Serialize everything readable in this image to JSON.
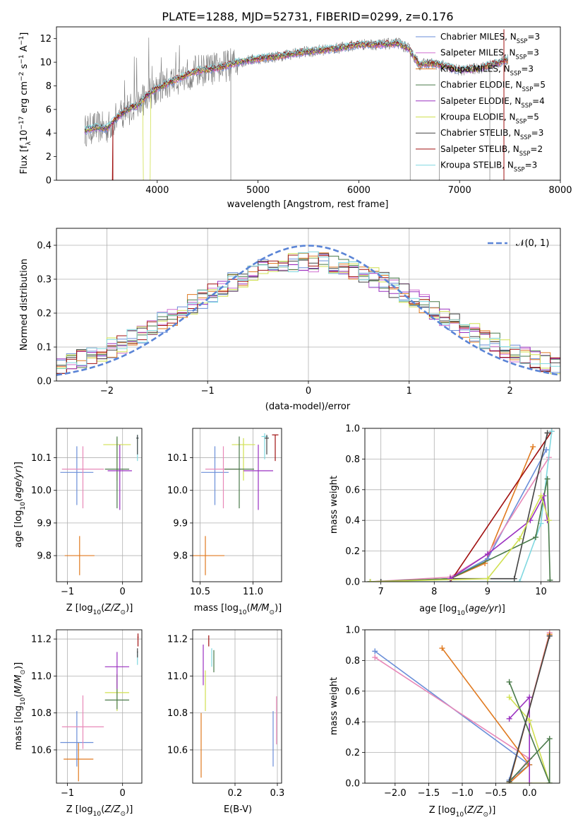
{
  "figure_title": "PLATE=1288, MJD=52731, FIBERID=0299, z=0.176",
  "colors": {
    "Chabrier MILES": "#6a8ed8",
    "Salpeter MILES": "#d070d0",
    "Kroupa MILES": "#e07a20",
    "Chabrier ELODIE": "#4a7a4a",
    "Salpeter ELODIE": "#9a30c0",
    "Kroupa ELODIE": "#d0e050",
    "Chabrier STELIB": "#444444",
    "Salpeter STELIB": "#a01010",
    "Kroupa STELIB": "#80d8e0",
    "pink": "#e888b8",
    "data": "#7a7a7a"
  },
  "chart_data": [
    {
      "id": "spectrum",
      "type": "line",
      "xlabel": "wavelength [Angstrom, rest frame]",
      "ylabel": "Flux [f_λ10^-17 erg cm^-2 s^-1 A^-1]",
      "xlim": [
        3000,
        8000
      ],
      "ylim": [
        0,
        13
      ],
      "xticks": [
        4000,
        5000,
        6000,
        7000,
        8000
      ],
      "yticks": [
        0,
        2,
        4,
        6,
        8,
        10,
        12
      ],
      "grid": false,
      "legend_position": "right",
      "legend": [
        {
          "model": "Chabrier MILES",
          "nssp": "3"
        },
        {
          "model": "Salpeter MILES",
          "nssp": "3"
        },
        {
          "model": "Kroupa MILES",
          "nssp": "3"
        },
        {
          "model": "Chabrier ELODIE",
          "nssp": "5"
        },
        {
          "model": "Salpeter ELODIE",
          "nssp": "4"
        },
        {
          "model": "Kroupa ELODIE",
          "nssp": "5"
        },
        {
          "model": "Chabrier STELIB",
          "nssp": "3"
        },
        {
          "model": "Salpeter STELIB",
          "nssp": "2"
        },
        {
          "model": "Kroupa STELIB",
          "nssp": "3"
        }
      ],
      "continuum": {
        "x": [
          3270,
          3400,
          3500,
          3600,
          3700,
          3800,
          3900,
          4000,
          4200,
          4400,
          4600,
          4800,
          5000,
          5200,
          5400,
          5600,
          5800,
          6000,
          6200,
          6400,
          6500,
          6600,
          6700,
          6800,
          7000,
          7200,
          7400,
          7500
        ],
        "y": [
          4.2,
          4.5,
          4.4,
          5.3,
          6.0,
          6.3,
          7.2,
          7.8,
          8.6,
          9.3,
          9.5,
          10.0,
          10.3,
          10.5,
          10.8,
          11.0,
          11.2,
          11.5,
          11.5,
          11.6,
          11.1,
          9.8,
          9.9,
          9.8,
          9.3,
          9.5,
          10.0,
          10.3
        ]
      }
    },
    {
      "id": "residuals",
      "type": "histogram",
      "xlabel": "(data-model)/error",
      "ylabel": "Normed distribution",
      "xlim": [
        -2.5,
        2.5
      ],
      "ylim": [
        0,
        0.45
      ],
      "xticks": [
        -2,
        -1,
        0,
        1,
        2
      ],
      "yticks": [
        0.0,
        0.1,
        0.2,
        0.3,
        0.4
      ],
      "grid": true,
      "legend_position": "top-right",
      "legend_label": "𝒩(0, 1)",
      "reference_curve": "normal(0,1)"
    },
    {
      "id": "age_vs_Z",
      "type": "errorbar",
      "xlabel": "Z [log10(Z/Z⊙)]",
      "ylabel": "age  [log10(age/yr)]",
      "xlim": [
        -1.2,
        0.35
      ],
      "ylim": [
        9.72,
        10.19
      ],
      "xticks": [
        -1,
        0
      ],
      "yticks": [
        9.8,
        9.9,
        10.0,
        10.1
      ],
      "grid": true,
      "points": [
        {
          "model": "Kroupa MILES",
          "x": -0.78,
          "xerr": 0.27,
          "y": 9.8,
          "yerr_lo": 0.06,
          "yerr_hi": 0.06
        },
        {
          "model": "Chabrier MILES",
          "x": -0.83,
          "xerr": 0.3,
          "y": 10.055,
          "yerr_lo": 0.1,
          "yerr_hi": 0.08
        },
        {
          "model": "pink",
          "x": -0.72,
          "xerr": 0.38,
          "y": 10.065,
          "yerr_lo": 0.12,
          "yerr_hi": 0.07
        },
        {
          "model": "Kroupa ELODIE",
          "x": -0.1,
          "xerr": 0.25,
          "y": 10.14,
          "yerr_lo": 0.11,
          "yerr_hi": 0.02
        },
        {
          "model": "Chabrier ELODIE",
          "x": -0.1,
          "xerr": 0.22,
          "y": 10.065,
          "yerr_lo": 0.12,
          "yerr_hi": 0.1
        },
        {
          "model": "Salpeter ELODIE",
          "x": -0.05,
          "xerr": 0.22,
          "y": 10.06,
          "yerr_lo": 0.12,
          "yerr_hi": 0.08
        },
        {
          "model": "Kroupa STELIB",
          "x": 0.27,
          "xerr": 0.02,
          "y": 10.16,
          "yerr_lo": 0.07,
          "yerr_hi": 0.01
        },
        {
          "model": "Chabrier STELIB",
          "x": 0.27,
          "xerr": 0.02,
          "y": 10.16,
          "yerr_lo": 0.05,
          "yerr_hi": 0.01
        }
      ]
    },
    {
      "id": "age_vs_mass",
      "type": "errorbar",
      "xlabel": "mass [log10(M/M⊙)]",
      "ylabel": "",
      "xlim": [
        10.43,
        11.27
      ],
      "ylim": [
        9.72,
        10.19
      ],
      "xticks": [
        10.5,
        11.0
      ],
      "yticks": [
        9.8,
        9.9,
        10.0,
        10.1
      ],
      "grid": true,
      "points": [
        {
          "model": "Kroupa MILES",
          "x": 10.55,
          "xerr": 0.18,
          "y": 9.8,
          "yerr_lo": 0.06,
          "yerr_hi": 0.06
        },
        {
          "model": "Chabrier MILES",
          "x": 10.64,
          "xerr": 0.13,
          "y": 10.055,
          "yerr_lo": 0.1,
          "yerr_hi": 0.08
        },
        {
          "model": "pink",
          "x": 10.72,
          "xerr": 0.17,
          "y": 10.065,
          "yerr_lo": 0.12,
          "yerr_hi": 0.07
        },
        {
          "model": "Kroupa ELODIE",
          "x": 10.91,
          "xerr": 0.11,
          "y": 10.14,
          "yerr_lo": 0.11,
          "yerr_hi": 0.02
        },
        {
          "model": "Chabrier ELODIE",
          "x": 10.87,
          "xerr": 0.14,
          "y": 10.065,
          "yerr_lo": 0.12,
          "yerr_hi": 0.1
        },
        {
          "model": "Salpeter ELODIE",
          "x": 11.05,
          "xerr": 0.14,
          "y": 10.06,
          "yerr_lo": 0.12,
          "yerr_hi": 0.08
        },
        {
          "model": "Kroupa STELIB",
          "x": 11.11,
          "xerr": 0.03,
          "y": 10.165,
          "yerr_lo": 0.07,
          "yerr_hi": 0.01
        },
        {
          "model": "Chabrier STELIB",
          "x": 11.13,
          "xerr": 0.02,
          "y": 10.16,
          "yerr_lo": 0.05,
          "yerr_hi": 0.01
        },
        {
          "model": "Salpeter STELIB",
          "x": 11.21,
          "xerr": 0.03,
          "y": 10.17,
          "yerr_lo": 0.08,
          "yerr_hi": 0.0
        }
      ]
    },
    {
      "id": "weight_vs_age",
      "type": "line",
      "xlabel": "age  [log10(age/yr)]",
      "ylabel": "mass weight",
      "xlim": [
        6.7,
        10.35
      ],
      "ylim": [
        0,
        1
      ],
      "xticks": [
        7,
        8,
        9,
        10
      ],
      "yticks": [
        0.0,
        0.2,
        0.4,
        0.6,
        0.8,
        1.0
      ],
      "grid": true,
      "series": [
        {
          "model": "Kroupa MILES",
          "x": [
            7.0,
            8.3,
            8.95,
            9.85
          ],
          "y": [
            0.0,
            0.02,
            0.12,
            0.88
          ]
        },
        {
          "model": "Chabrier MILES",
          "x": [
            7.0,
            8.3,
            9.0,
            10.1
          ],
          "y": [
            0.0,
            0.02,
            0.15,
            0.86
          ]
        },
        {
          "model": "pink",
          "x": [
            6.8,
            8.3,
            9.0,
            10.15
          ],
          "y": [
            0.0,
            0.03,
            0.18,
            0.81
          ]
        },
        {
          "model": "Salpeter STELIB",
          "x": [
            8.3,
            10.2
          ],
          "y": [
            0.0,
            0.98
          ]
        },
        {
          "model": "Chabrier STELIB",
          "x": [
            7.0,
            8.3,
            9.5,
            10.12
          ],
          "y": [
            0.0,
            0.02,
            0.02,
            0.97
          ]
        },
        {
          "model": "Kroupa STELIB",
          "x": [
            6.8,
            9.6,
            10.0,
            10.2
          ],
          "y": [
            0.0,
            0.0,
            0.38,
            0.98
          ]
        },
        {
          "model": "Chabrier ELODIE",
          "x": [
            6.8,
            8.3,
            9.9,
            10.12,
            10.17
          ],
          "y": [
            0.0,
            0.02,
            0.29,
            0.67,
            0.01
          ]
        },
        {
          "model": "Salpeter ELODIE",
          "x": [
            8.3,
            9.0,
            9.8,
            10.05,
            10.12
          ],
          "y": [
            0.02,
            0.18,
            0.4,
            0.56,
            0.4
          ]
        },
        {
          "model": "Kroupa ELODIE",
          "x": [
            6.8,
            9.0,
            9.6,
            10.0,
            10.15
          ],
          "y": [
            0.0,
            0.02,
            0.28,
            0.56,
            0.4
          ]
        }
      ]
    },
    {
      "id": "mass_vs_Z",
      "type": "errorbar",
      "xlabel": "Z [log10(Z/Z⊙)]",
      "ylabel": "mass [log10(M/M⊙)]",
      "xlim": [
        -1.2,
        0.35
      ],
      "ylim": [
        10.42,
        11.25
      ],
      "xticks": [
        -1,
        0
      ],
      "yticks": [
        10.6,
        10.8,
        11.0,
        11.2
      ],
      "grid": true,
      "points": [
        {
          "model": "Kroupa MILES",
          "x": -0.8,
          "xerr": 0.27,
          "y": 10.55,
          "yerr_lo": 0.12,
          "yerr_hi": 0.09
        },
        {
          "model": "Chabrier MILES",
          "x": -0.83,
          "xerr": 0.3,
          "y": 10.64,
          "yerr_lo": 0.13,
          "yerr_hi": 0.17
        },
        {
          "model": "pink",
          "x": -0.72,
          "xerr": 0.38,
          "y": 10.725,
          "yerr_lo": 0.12,
          "yerr_hi": 0.17
        },
        {
          "model": "Kroupa ELODIE",
          "x": -0.1,
          "xerr": 0.22,
          "y": 10.91,
          "yerr_lo": 0.1,
          "yerr_hi": 0.1
        },
        {
          "model": "Chabrier ELODIE",
          "x": -0.1,
          "xerr": 0.22,
          "y": 10.87,
          "yerr_lo": 0.05,
          "yerr_hi": 0.14
        },
        {
          "model": "Salpeter ELODIE",
          "x": -0.1,
          "xerr": 0.22,
          "y": 11.05,
          "yerr_lo": 0.12,
          "yerr_hi": 0.08
        },
        {
          "model": "Kroupa STELIB",
          "x": 0.27,
          "xerr": 0.01,
          "y": 11.11,
          "yerr_lo": 0.05,
          "yerr_hi": 0.02
        },
        {
          "model": "Chabrier STELIB",
          "x": 0.27,
          "xerr": 0.01,
          "y": 11.13,
          "yerr_lo": 0.03,
          "yerr_hi": 0.02
        },
        {
          "model": "Salpeter STELIB",
          "x": 0.28,
          "xerr": 0.01,
          "y": 11.21,
          "yerr_lo": 0.05,
          "yerr_hi": 0.02
        }
      ]
    },
    {
      "id": "mass_vs_ebv",
      "type": "errorbar",
      "xlabel": "E(B-V)",
      "ylabel": "",
      "xlim": [
        0.1,
        0.31
      ],
      "ylim": [
        10.42,
        11.25
      ],
      "xticks": [
        0.2,
        0.3
      ],
      "yticks": [
        10.6,
        10.8,
        11.0,
        11.2
      ],
      "grid": true,
      "points": [
        {
          "model": "Kroupa MILES",
          "x": 0.12,
          "y": 10.55,
          "yerr_lo": 0.1,
          "yerr_hi": 0.25
        },
        {
          "model": "Salpeter ELODIE",
          "x": 0.125,
          "y": 11.05,
          "yerr_lo": 0.1,
          "yerr_hi": 0.12
        },
        {
          "model": "Kroupa ELODIE",
          "x": 0.13,
          "y": 10.92,
          "yerr_lo": 0.11,
          "yerr_hi": 0.11
        },
        {
          "model": "Salpeter STELIB",
          "x": 0.138,
          "y": 11.19,
          "yerr_lo": 0.03,
          "yerr_hi": 0.03
        },
        {
          "model": "Kroupa STELIB",
          "x": 0.145,
          "y": 11.1,
          "yerr_lo": 0.05,
          "yerr_hi": 0.05
        },
        {
          "model": "Chabrier ELODIE",
          "x": 0.15,
          "y": 11.08,
          "yerr_lo": 0.06,
          "yerr_hi": 0.06
        },
        {
          "model": "Chabrier MILES",
          "x": 0.29,
          "y": 10.66,
          "yerr_lo": 0.15,
          "yerr_hi": 0.15
        },
        {
          "model": "pink",
          "x": 0.298,
          "y": 10.76,
          "yerr_lo": 0.13,
          "yerr_hi": 0.13
        }
      ]
    },
    {
      "id": "weight_vs_Z",
      "type": "line",
      "xlabel": "Z [log10(Z/Z⊙)]",
      "ylabel": "mass weight",
      "xlim": [
        -2.45,
        0.45
      ],
      "ylim": [
        0,
        1
      ],
      "xticks": [
        -2.0,
        -1.5,
        -1.0,
        -0.5,
        0.0
      ],
      "yticks": [
        0.0,
        0.2,
        0.4,
        0.6,
        0.8,
        1.0
      ],
      "grid": true,
      "series": [
        {
          "model": "Chabrier MILES",
          "x": [
            -2.3,
            0.0,
            -0.3,
            0.3
          ],
          "y": [
            0.86,
            0.12,
            0.02,
            0.96
          ]
        },
        {
          "model": "pink",
          "x": [
            -2.3,
            0.0,
            -0.3,
            0.3
          ],
          "y": [
            0.82,
            0.16,
            0.0,
            0.98
          ]
        },
        {
          "model": "Kroupa MILES",
          "x": [
            -1.3,
            0.0,
            -0.3,
            0.3
          ],
          "y": [
            0.88,
            0.12,
            0.0,
            0.97
          ]
        },
        {
          "model": "Salpeter ELODIE",
          "x": [
            -0.3,
            0.0,
            0.0
          ],
          "y": [
            0.42,
            0.56,
            0.0
          ]
        },
        {
          "model": "Kroupa ELODIE",
          "x": [
            -0.3,
            0.0,
            0.3,
            -0.3
          ],
          "y": [
            0.56,
            0.41,
            0.0,
            0.0
          ]
        },
        {
          "model": "Chabrier ELODIE",
          "x": [
            -0.3,
            0.3,
            0.3,
            -0.3
          ],
          "y": [
            0.66,
            0.0,
            0.29,
            0.01
          ]
        },
        {
          "model": "Chabrier STELIB",
          "x": [
            -0.3,
            0.3
          ],
          "y": [
            0.01,
            0.96
          ]
        }
      ]
    }
  ]
}
